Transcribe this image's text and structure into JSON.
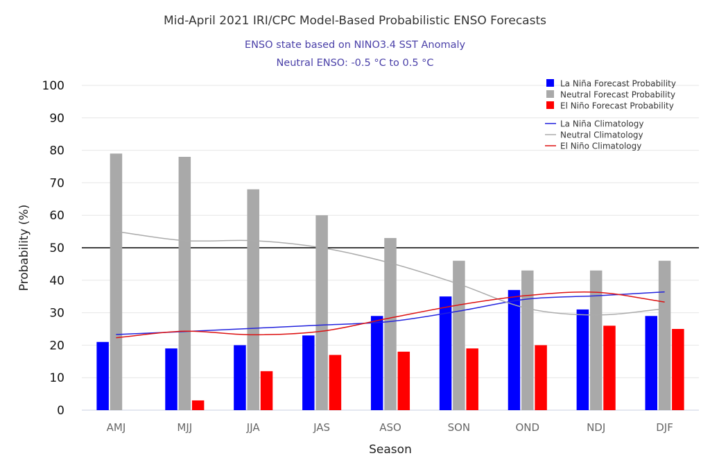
{
  "chart_data": {
    "type": "bar",
    "title": "Mid-April 2021 IRI/CPC Model-Based Probabilistic ENSO Forecasts",
    "subtitle_lines": [
      "ENSO state based on NINO3.4 SST Anomaly",
      "Neutral ENSO: -0.5 °C to 0.5 °C"
    ],
    "xlabel": "Season",
    "ylabel": "Probability (%)",
    "ylim": [
      0,
      100
    ],
    "yticks": [
      0,
      10,
      20,
      30,
      40,
      50,
      60,
      70,
      80,
      90,
      100
    ],
    "reference_line": 50,
    "categories": [
      "AMJ",
      "MJJ",
      "JJA",
      "JAS",
      "ASO",
      "SON",
      "OND",
      "NDJ",
      "DJF"
    ],
    "series": [
      {
        "name": "La Niña Forecast Probability",
        "kind": "bar",
        "color": "#0000ff",
        "values": [
          21,
          19,
          20,
          23,
          29,
          35,
          37,
          31,
          29
        ]
      },
      {
        "name": "Neutral Forecast Probability",
        "kind": "bar",
        "color": "#a9a9a9",
        "values": [
          79,
          78,
          68,
          60,
          53,
          46,
          43,
          43,
          46
        ]
      },
      {
        "name": "El Niño Forecast Probability",
        "kind": "bar",
        "color": "#ff0000",
        "values": [
          0,
          3,
          12,
          17,
          18,
          19,
          20,
          26,
          25
        ]
      },
      {
        "name": "La Niña Climatology",
        "kind": "line",
        "color": "#2222dd",
        "values": [
          23.3,
          24.2,
          25.2,
          26.2,
          27.3,
          30.5,
          34.2,
          35.2,
          36.4
        ]
      },
      {
        "name": "Neutral Climatology",
        "kind": "line",
        "color": "#aaaaaa",
        "values": [
          55,
          52.2,
          52.2,
          50,
          45.3,
          38.8,
          31.3,
          29.3,
          31.2
        ]
      },
      {
        "name": "El Niño Climatology",
        "kind": "line",
        "color": "#dd1111",
        "values": [
          22.3,
          24.3,
          23.2,
          24.3,
          28.4,
          32.4,
          35.3,
          36.3,
          33.3
        ]
      }
    ],
    "grid": true,
    "legend_position": "top-right"
  }
}
